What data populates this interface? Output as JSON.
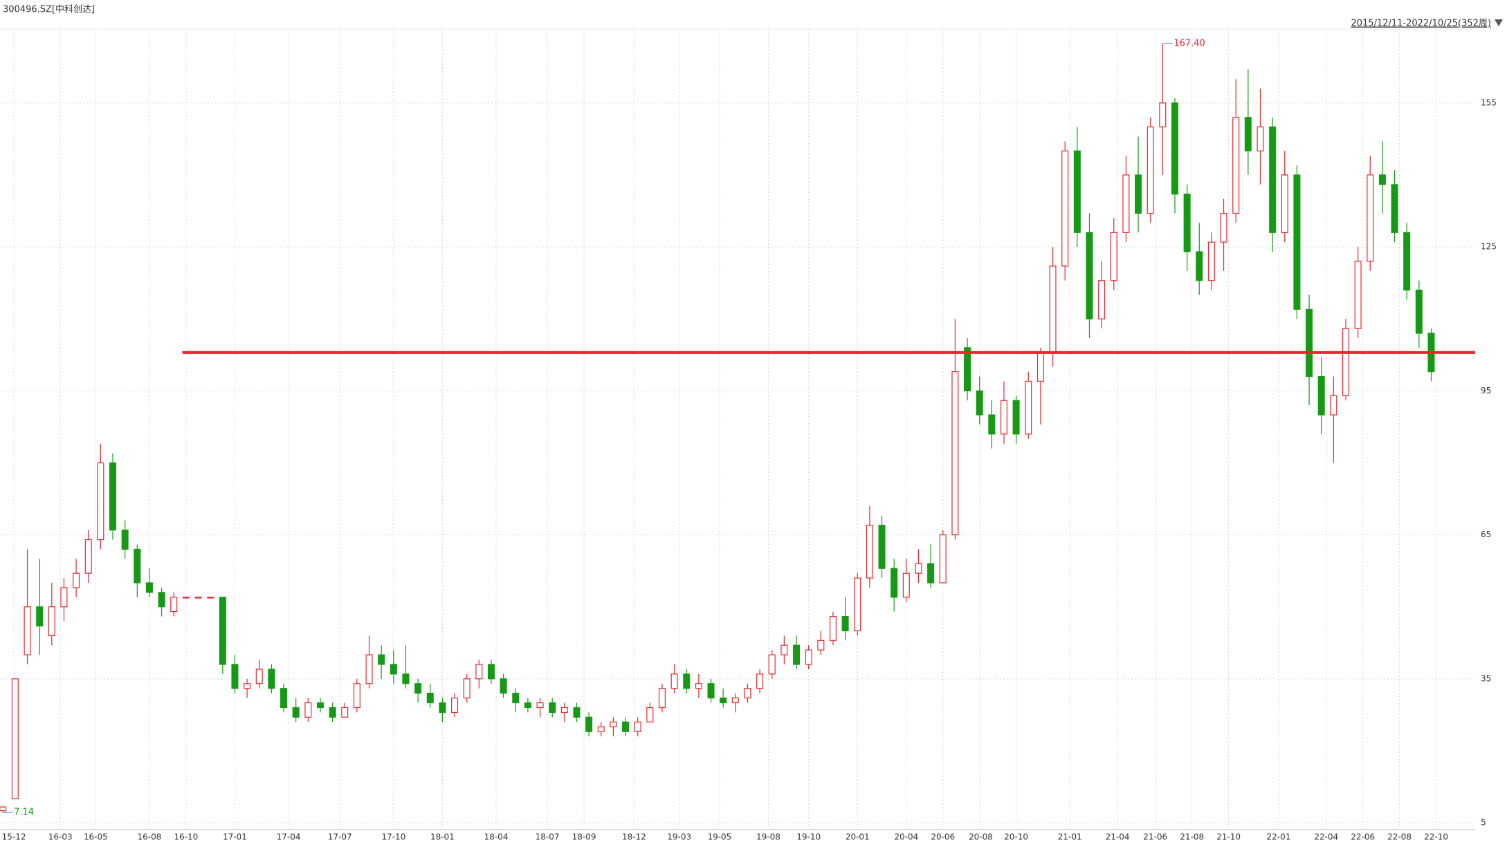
{
  "chart_data": {
    "type": "candlestick",
    "title": "300496.SZ[中科创达]",
    "range_label": "2015/12/11-2022/10/25(352周)",
    "up_color": "#e8262b",
    "down_color": "#169a16",
    "level_color": "#e8262b",
    "grid": true,
    "ylim": [
      4,
      170.4
    ],
    "yticks": [
      5,
      35,
      65,
      95,
      125,
      155
    ],
    "xlim": [
      -0.24,
      120.6
    ],
    "xticks": [
      {
        "value": 0.9,
        "label": "15-12"
      },
      {
        "value": 4.7,
        "label": "16-03"
      },
      {
        "value": 7.6,
        "label": "16-05"
      },
      {
        "value": 12,
        "label": "16-08"
      },
      {
        "value": 15,
        "label": "16-10"
      },
      {
        "value": 19,
        "label": "17-01"
      },
      {
        "value": 23.4,
        "label": "17-04"
      },
      {
        "value": 27.6,
        "label": "17-07"
      },
      {
        "value": 32,
        "label": "17-10"
      },
      {
        "value": 36,
        "label": "18-01"
      },
      {
        "value": 40.4,
        "label": "18-04"
      },
      {
        "value": 44.6,
        "label": "18-07"
      },
      {
        "value": 47.6,
        "label": "18-09"
      },
      {
        "value": 51.7,
        "label": "18-12"
      },
      {
        "value": 55.4,
        "label": "19-03"
      },
      {
        "value": 58.7,
        "label": "19-05"
      },
      {
        "value": 62.7,
        "label": "19-08"
      },
      {
        "value": 66,
        "label": "19-10"
      },
      {
        "value": 70,
        "label": "20-01"
      },
      {
        "value": 74,
        "label": "20-04"
      },
      {
        "value": 77,
        "label": "20-06"
      },
      {
        "value": 80.1,
        "label": "20-08"
      },
      {
        "value": 83,
        "label": "20-10"
      },
      {
        "value": 87.4,
        "label": "21-01"
      },
      {
        "value": 91.3,
        "label": "21-04"
      },
      {
        "value": 94.4,
        "label": "21-06"
      },
      {
        "value": 97.4,
        "label": "21-08"
      },
      {
        "value": 100.4,
        "label": "21-10"
      },
      {
        "value": 104.5,
        "label": "22-01"
      },
      {
        "value": 108.4,
        "label": "22-04"
      },
      {
        "value": 111.4,
        "label": "22-06"
      },
      {
        "value": 114.4,
        "label": "22-08"
      },
      {
        "value": 117.4,
        "label": "22-10"
      }
    ],
    "level_line": 103,
    "max_label": {
      "index": 95,
      "value": 167.4,
      "label": "167.40"
    },
    "min_label": {
      "index": 0,
      "value": 7.14,
      "label": "7.14"
    },
    "open": [
      7.5,
      10,
      40,
      50,
      44,
      50,
      54,
      57,
      64,
      80,
      66,
      62,
      55,
      53,
      49,
      52,
      52,
      52,
      52,
      38,
      33,
      34,
      37,
      33,
      29,
      27,
      30,
      29,
      27,
      29,
      34,
      40,
      38,
      36,
      34,
      32,
      30,
      28,
      31,
      35,
      38,
      35,
      32,
      30,
      29,
      30,
      28,
      29,
      27,
      24,
      25,
      26,
      24,
      26,
      29,
      33,
      36,
      33,
      34,
      31,
      30,
      31,
      33,
      36,
      40,
      42,
      38,
      41,
      43,
      48,
      45,
      56,
      67,
      58,
      52,
      57,
      59,
      55,
      65,
      104,
      95,
      90,
      86,
      93,
      86,
      97,
      103,
      121,
      145,
      128,
      110,
      118,
      128,
      140,
      132,
      150,
      155,
      136,
      124,
      118,
      126,
      132,
      152,
      145,
      150,
      128,
      140,
      112,
      98,
      90,
      94,
      108,
      122,
      140,
      138,
      128,
      116,
      107
    ],
    "high": [
      8.5,
      35,
      62,
      60,
      55,
      56,
      60,
      66,
      84,
      82,
      68,
      63,
      58,
      54,
      53,
      52,
      52,
      52,
      52,
      40,
      35,
      39,
      38,
      34,
      31,
      31,
      31,
      30,
      30,
      35,
      44,
      42,
      41,
      42,
      35,
      34,
      31,
      32,
      36,
      39,
      39,
      36,
      33,
      31,
      31,
      31,
      30,
      30,
      28,
      26,
      27,
      27,
      27,
      30,
      34,
      38,
      37,
      36,
      35,
      33,
      32,
      34,
      37,
      41,
      44,
      44,
      42,
      45,
      49,
      52,
      57,
      71,
      69,
      60,
      60,
      62,
      63,
      66,
      110,
      106,
      98,
      93,
      97,
      94,
      99,
      104,
      125,
      147,
      150,
      132,
      122,
      131,
      144,
      148,
      152,
      167.4,
      156,
      138,
      130,
      128,
      135,
      160,
      162,
      158,
      152,
      145,
      142,
      115,
      102,
      98,
      110,
      125,
      144,
      147,
      141,
      130,
      118,
      108
    ],
    "low": [
      7.14,
      10,
      38,
      40,
      42,
      47,
      52,
      55,
      62,
      64,
      60,
      52,
      52,
      48,
      48,
      52,
      52,
      52,
      36,
      32,
      31,
      33,
      32,
      28,
      26,
      26,
      28,
      26,
      27,
      28,
      33,
      35,
      34,
      33,
      30,
      29,
      26,
      27,
      30,
      33,
      34,
      31,
      28,
      28,
      27,
      27,
      26,
      26,
      23,
      23,
      23,
      23,
      23,
      26,
      28,
      32,
      32,
      31,
      30,
      29,
      28,
      30,
      32,
      35,
      38,
      37,
      37,
      40,
      42,
      43,
      44,
      54,
      56,
      49,
      51,
      55,
      54,
      55,
      64,
      93,
      88,
      83,
      84,
      84,
      85,
      88,
      100,
      118,
      125,
      106,
      108,
      116,
      126,
      128,
      130,
      140,
      132,
      120,
      115,
      116,
      120,
      130,
      140,
      138,
      124,
      126,
      110,
      92,
      86,
      80,
      93,
      106,
      120,
      132,
      126,
      114,
      104,
      97
    ],
    "close": [
      8.3,
      35,
      50,
      46,
      50,
      54,
      57,
      64,
      80,
      66,
      62,
      55,
      53,
      50,
      52,
      52,
      52,
      52,
      38,
      33,
      34,
      37,
      33,
      29,
      27,
      30,
      29,
      27,
      29,
      34,
      40,
      38,
      36,
      34,
      32,
      30,
      28,
      31,
      35,
      38,
      35,
      32,
      30,
      29,
      30,
      28,
      29,
      27,
      24,
      25,
      26,
      24,
      26,
      29,
      33,
      36,
      33,
      34,
      31,
      30,
      31,
      33,
      36,
      40,
      42,
      38,
      41,
      43,
      48,
      45,
      56,
      67,
      58,
      52,
      57,
      59,
      55,
      65,
      99,
      95,
      90,
      86,
      93,
      86,
      97,
      103,
      121,
      145,
      128,
      110,
      118,
      128,
      140,
      132,
      150,
      155,
      136,
      124,
      118,
      126,
      132,
      152,
      145,
      150,
      128,
      140,
      112,
      98,
      90,
      94,
      108,
      122,
      140,
      138,
      128,
      116,
      107,
      99
    ]
  }
}
